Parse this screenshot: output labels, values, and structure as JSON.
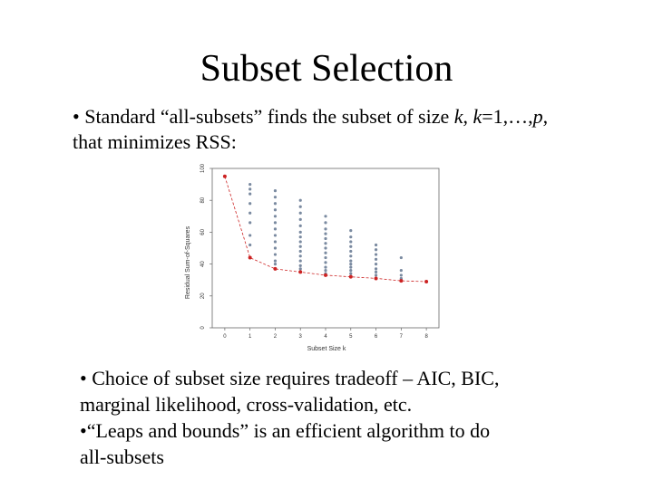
{
  "slide": {
    "title": "Subset Selection",
    "bullet_top": {
      "bullet": "•",
      "t1": "Standard “all-subsets” finds the subset of size ",
      "k1": "k",
      "t2": ", ",
      "k2": "k",
      "t3": "=1,…,",
      "p": "p",
      "t4": ",",
      "line2": "that minimizes RSS:"
    },
    "bullets_bottom": [
      "• Choice of subset size requires tradeoff – AIC, BIC,",
      "marginal likelihood, cross-validation, etc.",
      "•“Leaps and bounds” is an efficient algorithm to do",
      "all-subsets"
    ]
  },
  "chart_data": {
    "type": "scatter",
    "xlabel": "Subset Size k",
    "ylabel": "Residual Sum-of-Squares",
    "xlim": [
      -0.5,
      8.5
    ],
    "ylim": [
      0,
      100
    ],
    "x_ticks": [
      "0",
      "1",
      "2",
      "3",
      "4",
      "5",
      "6",
      "7",
      "8"
    ],
    "y_ticks": [
      "0",
      "20",
      "40",
      "60",
      "80",
      "100"
    ],
    "series": [
      {
        "kind": "all_subsets",
        "color": "#7a8aa0",
        "points": [
          [
            1,
            90
          ],
          [
            1,
            87
          ],
          [
            1,
            84
          ],
          [
            1,
            78
          ],
          [
            1,
            72
          ],
          [
            1,
            66
          ],
          [
            1,
            58
          ],
          [
            1,
            52
          ],
          [
            2,
            86
          ],
          [
            2,
            82
          ],
          [
            2,
            78
          ],
          [
            2,
            74
          ],
          [
            2,
            70
          ],
          [
            2,
            66
          ],
          [
            2,
            62
          ],
          [
            2,
            58
          ],
          [
            2,
            54
          ],
          [
            2,
            50
          ],
          [
            2,
            46
          ],
          [
            2,
            42
          ],
          [
            2,
            40
          ],
          [
            3,
            80
          ],
          [
            3,
            76
          ],
          [
            3,
            72
          ],
          [
            3,
            68
          ],
          [
            3,
            64
          ],
          [
            3,
            60
          ],
          [
            3,
            57
          ],
          [
            3,
            54
          ],
          [
            3,
            51
          ],
          [
            3,
            48
          ],
          [
            3,
            45
          ],
          [
            3,
            42
          ],
          [
            3,
            39
          ],
          [
            3,
            37
          ],
          [
            4,
            70
          ],
          [
            4,
            66
          ],
          [
            4,
            62
          ],
          [
            4,
            59
          ],
          [
            4,
            56
          ],
          [
            4,
            53
          ],
          [
            4,
            50
          ],
          [
            4,
            47
          ],
          [
            4,
            44
          ],
          [
            4,
            41
          ],
          [
            4,
            38
          ],
          [
            4,
            36
          ],
          [
            4,
            34
          ],
          [
            5,
            61
          ],
          [
            5,
            57
          ],
          [
            5,
            54
          ],
          [
            5,
            51
          ],
          [
            5,
            48
          ],
          [
            5,
            45
          ],
          [
            5,
            42
          ],
          [
            5,
            40
          ],
          [
            5,
            38
          ],
          [
            5,
            36
          ],
          [
            5,
            34
          ],
          [
            6,
            52
          ],
          [
            6,
            49
          ],
          [
            6,
            46
          ],
          [
            6,
            43
          ],
          [
            6,
            40
          ],
          [
            6,
            37
          ],
          [
            6,
            35
          ],
          [
            6,
            33
          ],
          [
            6,
            31
          ],
          [
            7,
            44
          ],
          [
            7,
            36
          ],
          [
            7,
            33
          ],
          [
            7,
            31
          ],
          [
            7,
            30
          ],
          [
            8,
            29
          ]
        ]
      },
      {
        "kind": "best_subset",
        "color": "#cc2222",
        "points": [
          [
            0,
            95
          ],
          [
            1,
            44
          ],
          [
            2,
            37
          ],
          [
            3,
            35
          ],
          [
            4,
            33
          ],
          [
            5,
            32
          ],
          [
            6,
            31
          ],
          [
            7,
            29.5
          ],
          [
            8,
            29
          ]
        ]
      }
    ]
  }
}
